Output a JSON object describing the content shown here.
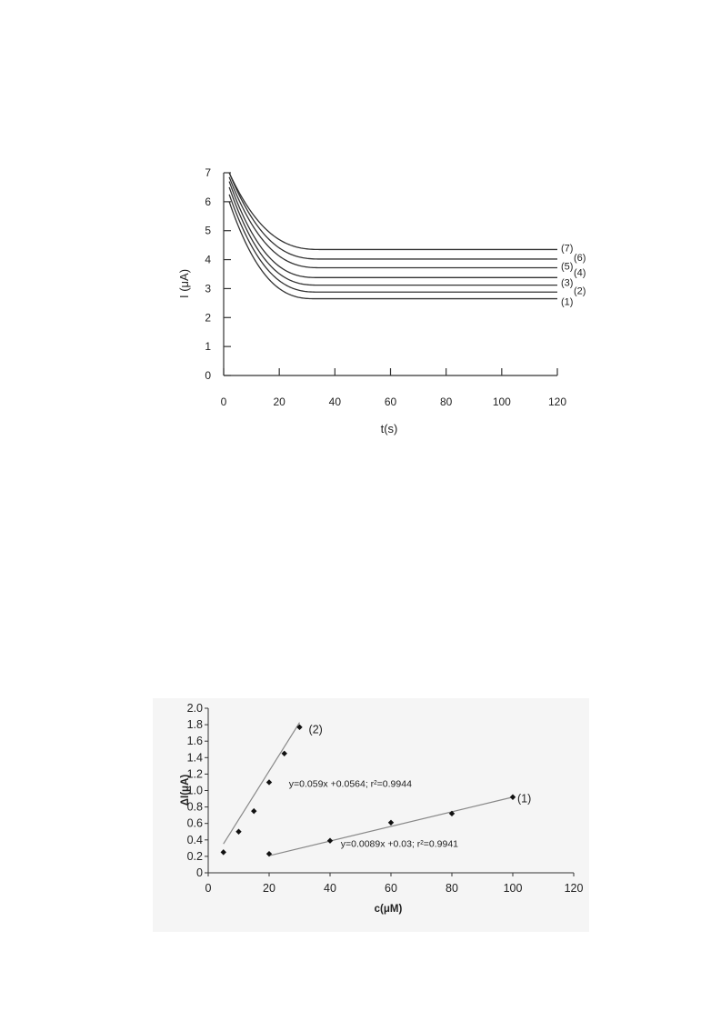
{
  "chart_data": [
    {
      "type": "line",
      "title": "",
      "xlabel": "t(s)",
      "ylabel": "I (μA)",
      "xlim": [
        0,
        120
      ],
      "ylim": [
        0,
        7
      ],
      "xticks": [
        0,
        20,
        40,
        60,
        80,
        100,
        120
      ],
      "yticks": [
        0,
        1,
        2,
        3,
        4,
        5,
        6,
        7
      ],
      "grid": false,
      "line_color": "#333333",
      "series": [
        {
          "label": "(1)",
          "start": 6.0,
          "plateau": 2.65,
          "t_plateau": 33
        },
        {
          "label": "(2)",
          "start": 6.25,
          "plateau": 2.88,
          "t_plateau": 34
        },
        {
          "label": "(3)",
          "start": 6.5,
          "plateau": 3.12,
          "t_plateau": 34
        },
        {
          "label": "(4)",
          "start": 6.7,
          "plateau": 3.38,
          "t_plateau": 34
        },
        {
          "label": "(5)",
          "start": 6.85,
          "plateau": 3.72,
          "t_plateau": 35
        },
        {
          "label": "(6)",
          "start": 7.0,
          "plateau": 4.02,
          "t_plateau": 35
        },
        {
          "label": "(7)",
          "start": 7.0,
          "plateau": 4.35,
          "t_plateau": 35
        }
      ]
    },
    {
      "type": "scatter",
      "title": "",
      "xlabel": "c(μM)",
      "ylabel": "ΔI(μA)",
      "xlim": [
        0,
        120
      ],
      "ylim": [
        0,
        2.0
      ],
      "xticks": [
        0,
        20,
        40,
        60,
        80,
        100,
        120
      ],
      "yticks": [
        "0",
        "0.2",
        "0.4",
        "0.6",
        "0.8",
        "1.0",
        "1.2",
        "1.4",
        "1.6",
        "1.8",
        "2.0"
      ],
      "grid": false,
      "background": "#f5f5f5",
      "fit_color": "#888888",
      "marker_color": "#111111",
      "series": [
        {
          "label": "(1)",
          "equation": "y=0.0089x +0.03; r²=0.9941",
          "slope": 0.0089,
          "intercept": 0.03,
          "x": [
            20,
            40,
            60,
            80,
            100
          ],
          "y": [
            0.23,
            0.39,
            0.61,
            0.72,
            0.92
          ]
        },
        {
          "label": "(2)",
          "equation": "y=0.059x +0.0564; r²=0.9944",
          "slope": 0.059,
          "intercept": 0.0564,
          "x": [
            5,
            10,
            15,
            20,
            25,
            30
          ],
          "y": [
            0.25,
            0.5,
            0.75,
            1.1,
            1.45,
            1.77
          ]
        }
      ]
    }
  ]
}
